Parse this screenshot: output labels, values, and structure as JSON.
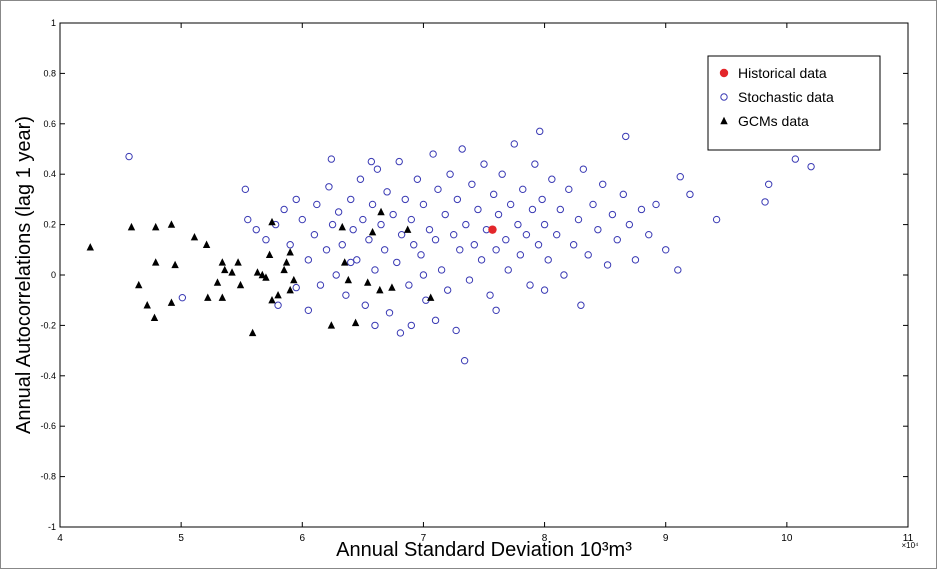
{
  "chart_data": {
    "type": "scatter",
    "x_label": "Annual Standard Deviation 10³m³",
    "y_label": "Annual Autocorrelations (lag 1 year)",
    "x_multiplier": "×10⁴",
    "xlim": [
      4,
      11
    ],
    "xticks": [
      4,
      5,
      6,
      7,
      8,
      9,
      10,
      11
    ],
    "ylim": [
      -1,
      1
    ],
    "yticks": [
      -1,
      -0.8,
      -0.6,
      -0.4,
      -0.2,
      0,
      0.2,
      0.4,
      0.6,
      0.8,
      1
    ],
    "grid": false,
    "legend": "top-right",
    "series": [
      {
        "name": "Stochastic data",
        "color": "#3a3ab4",
        "marker": "circle-open",
        "x": [
          5.55,
          5.62,
          5.7,
          5.78,
          5.85,
          5.9,
          5.95,
          6.0,
          6.05,
          6.1,
          6.12,
          6.15,
          6.2,
          6.22,
          6.25,
          6.28,
          6.3,
          6.33,
          6.36,
          6.4,
          6.42,
          6.45,
          6.48,
          6.5,
          6.52,
          6.55,
          6.58,
          6.6,
          6.62,
          6.65,
          6.68,
          6.7,
          6.72,
          6.75,
          6.78,
          6.8,
          6.82,
          6.85,
          6.88,
          6.9,
          6.92,
          6.95,
          6.98,
          7.0,
          7.02,
          7.05,
          7.08,
          7.1,
          7.12,
          7.15,
          7.18,
          7.2,
          7.22,
          7.25,
          7.28,
          7.3,
          7.32,
          7.35,
          7.38,
          7.4,
          7.42,
          7.45,
          7.48,
          7.5,
          7.52,
          7.55,
          7.58,
          7.6,
          7.62,
          7.65,
          7.68,
          7.7,
          7.72,
          7.75,
          7.78,
          7.8,
          7.82,
          7.85,
          7.88,
          7.9,
          7.92,
          7.95,
          7.98,
          8.0,
          8.03,
          8.06,
          8.1,
          8.13,
          8.16,
          8.2,
          8.24,
          8.28,
          8.32,
          8.36,
          8.4,
          8.44,
          8.48,
          8.52,
          8.56,
          8.6,
          8.65,
          8.7,
          8.75,
          8.8,
          8.86,
          8.92,
          9.0,
          6.9,
          7.1,
          6.6,
          5.95,
          6.05,
          5.8,
          7.6,
          8.0,
          6.4,
          7.0,
          4.57,
          5.53,
          10.07,
          10.2,
          9.85,
          9.82,
          9.42,
          9.12,
          7.34,
          8.67,
          7.96,
          6.24,
          5.01,
          9.1,
          9.2,
          8.3,
          6.81,
          7.27,
          6.57
        ],
        "values": [
          0.22,
          0.18,
          0.14,
          0.2,
          0.26,
          0.12,
          0.3,
          0.22,
          0.06,
          0.16,
          0.28,
          -0.04,
          0.1,
          0.35,
          0.2,
          0.0,
          0.25,
          0.12,
          -0.08,
          0.3,
          0.18,
          0.06,
          0.38,
          0.22,
          -0.12,
          0.14,
          0.28,
          0.02,
          0.42,
          0.2,
          0.1,
          0.33,
          -0.15,
          0.24,
          0.05,
          0.45,
          0.16,
          0.3,
          -0.04,
          0.22,
          0.12,
          0.38,
          0.08,
          0.28,
          -0.1,
          0.18,
          0.48,
          0.14,
          0.34,
          0.02,
          0.24,
          -0.06,
          0.4,
          0.16,
          0.3,
          0.1,
          0.5,
          0.2,
          -0.02,
          0.36,
          0.12,
          0.26,
          0.06,
          0.44,
          0.18,
          -0.08,
          0.32,
          0.1,
          0.24,
          0.4,
          0.14,
          0.02,
          0.28,
          0.52,
          0.2,
          0.08,
          0.34,
          0.16,
          -0.04,
          0.26,
          0.44,
          0.12,
          0.3,
          0.2,
          0.06,
          0.38,
          0.16,
          0.26,
          0.0,
          0.34,
          0.12,
          0.22,
          0.42,
          0.08,
          0.28,
          0.18,
          0.36,
          0.04,
          0.24,
          0.14,
          0.32,
          0.2,
          0.06,
          0.26,
          0.16,
          0.28,
          0.1,
          -0.2,
          -0.18,
          -0.2,
          -0.05,
          -0.14,
          -0.12,
          -0.14,
          -0.06,
          0.05,
          0.0,
          0.47,
          0.34,
          0.46,
          0.43,
          0.36,
          0.29,
          0.22,
          0.39,
          -0.34,
          0.55,
          0.57,
          0.46,
          -0.09,
          0.02,
          0.32,
          -0.12,
          -0.23,
          -0.22,
          0.45
        ]
      },
      {
        "name": "GCMs data",
        "color": "#000000",
        "marker": "triangle",
        "x": [
          4.25,
          4.59,
          4.79,
          4.92,
          4.65,
          4.72,
          4.78,
          4.79,
          4.95,
          4.92,
          5.11,
          5.21,
          5.34,
          5.36,
          5.42,
          5.47,
          5.49,
          5.22,
          5.34,
          5.3,
          5.59,
          5.63,
          5.67,
          5.7,
          5.75,
          5.73,
          5.75,
          5.8,
          5.85,
          5.87,
          5.9,
          5.93,
          5.9,
          6.24,
          6.35,
          6.33,
          6.38,
          6.44,
          6.54,
          6.58,
          6.64,
          6.74,
          6.65,
          7.06,
          6.87
        ],
        "values": [
          0.11,
          0.19,
          0.19,
          0.2,
          -0.04,
          -0.12,
          -0.17,
          0.05,
          0.04,
          -0.11,
          0.15,
          0.12,
          0.05,
          0.02,
          0.01,
          0.05,
          -0.04,
          -0.09,
          -0.09,
          -0.03,
          -0.23,
          0.01,
          0.0,
          -0.01,
          0.21,
          0.08,
          -0.1,
          -0.08,
          0.02,
          0.05,
          0.09,
          -0.02,
          -0.06,
          -0.2,
          0.05,
          0.19,
          -0.02,
          -0.19,
          -0.03,
          0.17,
          -0.06,
          -0.05,
          0.25,
          -0.09,
          0.18
        ]
      },
      {
        "name": "Historical data",
        "color": "#e3262a",
        "marker": "circle-filled",
        "x": [
          7.57
        ],
        "values": [
          0.18
        ]
      }
    ]
  }
}
